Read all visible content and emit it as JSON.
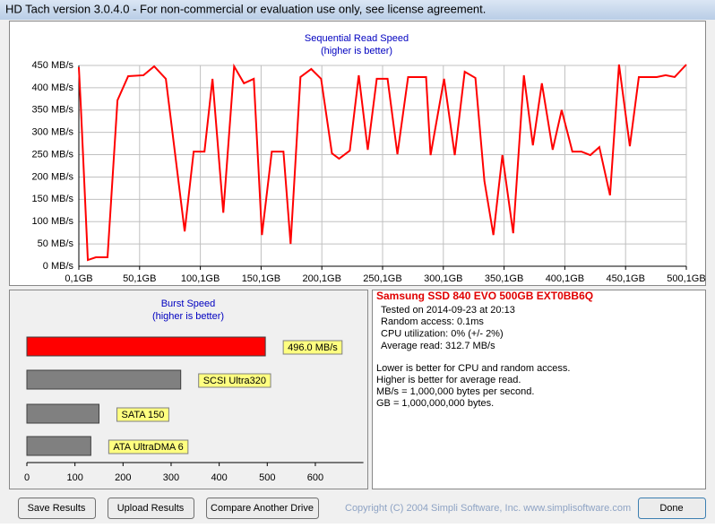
{
  "window": {
    "title": "HD Tach version 3.0.4.0  - For non-commercial or evaluation use only, see license agreement."
  },
  "chart_data": [
    {
      "type": "line",
      "title": "Sequential Read Speed",
      "subtitle": "(higher is better)",
      "color": "#ff0000",
      "grid": true,
      "x": [
        0.1,
        1.6,
        7.5,
        14.1,
        23.7,
        31.9,
        40.7,
        53.3,
        62.1,
        71.7,
        87.2,
        94.6,
        103.5,
        110.1,
        119.0,
        127.9,
        136.0,
        144.1,
        150.8,
        158.9,
        168.5,
        174.4,
        182.5,
        191.4,
        199.5,
        208.4,
        214.3,
        223.1,
        230.5,
        237.9,
        245.3,
        254.2,
        262.3,
        271.1,
        285.9,
        289.6,
        300.7,
        309.5,
        317.7,
        326.5,
        333.9,
        341.3,
        348.7,
        357.6,
        366.4,
        373.8,
        381.2,
        390.1,
        397.5,
        406.3,
        413.7,
        421.1,
        428.5,
        437.3,
        444.7,
        453.6,
        461.0,
        475.7,
        483.1,
        490.5,
        500.1
      ],
      "values": [
        446,
        366,
        14,
        20,
        20,
        372,
        426,
        428,
        448,
        420,
        78,
        257,
        257,
        420,
        120,
        448,
        410,
        420,
        70,
        257,
        257,
        50,
        424,
        442,
        420,
        253,
        241,
        259,
        428,
        261,
        420,
        420,
        251,
        424,
        424,
        249,
        420,
        249,
        436,
        422,
        191,
        70,
        249,
        74,
        428,
        271,
        410,
        261,
        350,
        257,
        257,
        249,
        267,
        159,
        452,
        269,
        424,
        424,
        428,
        424,
        452
      ],
      "xlim": [
        0.1,
        500.1
      ],
      "xticks": [
        {
          "value": 0.1,
          "label": "0,1GB"
        },
        {
          "value": 50.1,
          "label": "50,1GB"
        },
        {
          "value": 100.1,
          "label": "100,1GB"
        },
        {
          "value": 150.1,
          "label": "150,1GB"
        },
        {
          "value": 200.1,
          "label": "200,1GB"
        },
        {
          "value": 250.1,
          "label": "250,1GB"
        },
        {
          "value": 300.1,
          "label": "300,1GB"
        },
        {
          "value": 350.1,
          "label": "350,1GB"
        },
        {
          "value": 400.1,
          "label": "400,1GB"
        },
        {
          "value": 450.1,
          "label": "450,1GB"
        },
        {
          "value": 500.1,
          "label": "500,1GB"
        }
      ],
      "ylim": [
        0,
        450
      ],
      "yticks": [
        {
          "value": 0,
          "label": "0 MB/s"
        },
        {
          "value": 50,
          "label": "50 MB/s"
        },
        {
          "value": 100,
          "label": "100 MB/s"
        },
        {
          "value": 150,
          "label": "150 MB/s"
        },
        {
          "value": 200,
          "label": "200 MB/s"
        },
        {
          "value": 250,
          "label": "250 MB/s"
        },
        {
          "value": 300,
          "label": "300 MB/s"
        },
        {
          "value": 350,
          "label": "350 MB/s"
        },
        {
          "value": 400,
          "label": "400 MB/s"
        },
        {
          "value": 450,
          "label": "450 MB/s"
        }
      ]
    },
    {
      "type": "hbar",
      "title": "Burst Speed",
      "subtitle": "(higher is better)",
      "categories": [
        null,
        "SCSI Ultra320",
        "SATA 150",
        "ATA UltraDMA 6"
      ],
      "values": [
        496,
        320,
        150,
        133
      ],
      "value_labels": [
        "496.0 MB/s",
        null,
        null,
        null
      ],
      "colors": [
        "#ff0000",
        "#808080",
        "#808080",
        "#808080"
      ],
      "xlim": [
        0,
        700
      ],
      "xticks": [
        0,
        100,
        200,
        300,
        400,
        500,
        600
      ]
    }
  ],
  "info": {
    "drive": "Samsung SSD 840 EVO 500GB EXT0BB6Q",
    "lines": [
      "Tested on 2014-09-23 at 20:13",
      "Random access: 0.1ms",
      "CPU utilization: 0% (+/- 2%)",
      "Average read: 312.7 MB/s"
    ],
    "notes": [
      "Lower is better for CPU and random access.",
      "Higher is better for average read.",
      "MB/s = 1,000,000 bytes per second.",
      "GB = 1,000,000,000 bytes."
    ]
  },
  "buttons": [
    "Save Results",
    "Upload Results",
    "Compare Another Drive",
    "Done"
  ],
  "copyright": "Copyright (C) 2004 Simpli Software, Inc. www.simplisoftware.com"
}
